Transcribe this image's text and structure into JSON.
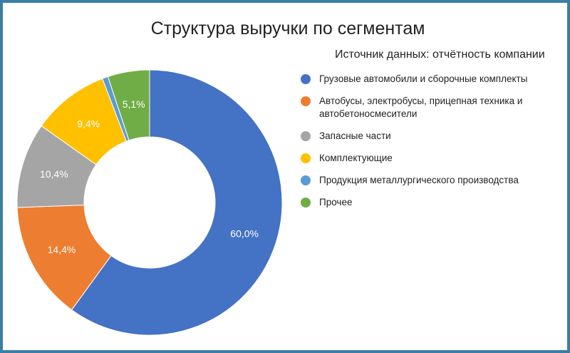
{
  "chart_data": {
    "type": "pie",
    "title": "Структура выручки по сегментам",
    "subtitle": "Источник данных: отчётность компании",
    "categories": [
      "Грузовые автомобили и сборочные комплекты",
      "Автобусы, электробусы, прицепная техника и автобетоносмесители",
      "Запасные части",
      "Комплектующие",
      "Продукция металлургического производства",
      "Прочее"
    ],
    "values": [
      60.0,
      14.4,
      10.4,
      9.4,
      0.7,
      5.1
    ],
    "data_labels": [
      "60,0%",
      "14,4%",
      "10,4%",
      "9,4%",
      "",
      "5,1%"
    ],
    "colors": [
      "#4472c4",
      "#ed7d31",
      "#a5a5a5",
      "#ffc000",
      "#5b9bd5",
      "#70ad47"
    ],
    "donut": true,
    "start_angle": "12 o'clock",
    "direction": "clockwise",
    "legend_position": "right"
  }
}
